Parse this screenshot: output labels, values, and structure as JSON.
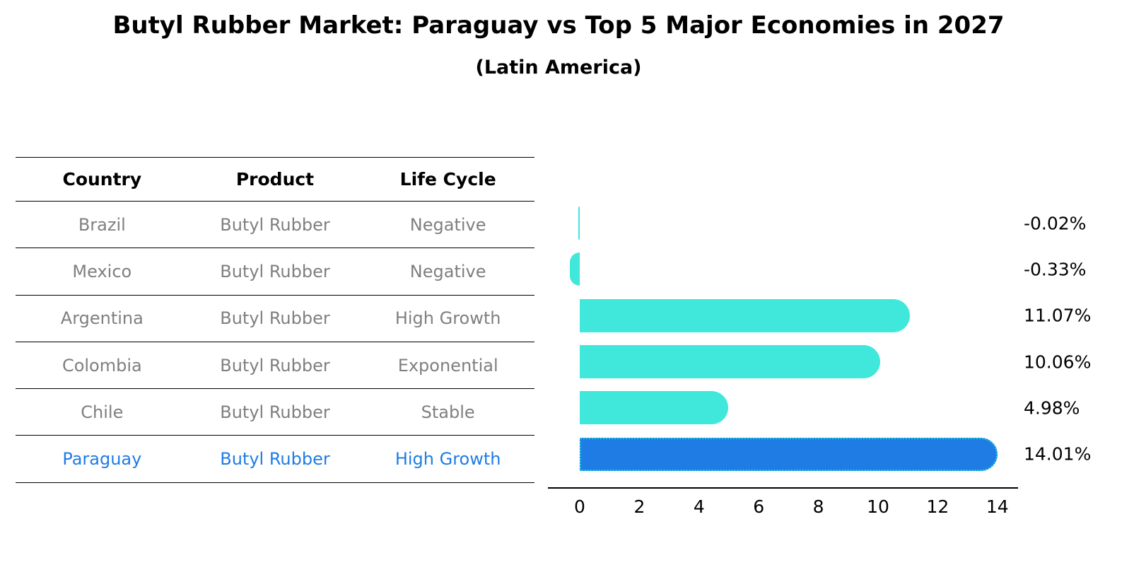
{
  "title": "Butyl Rubber Market: Paraguay vs Top 5 Major Economies in 2027",
  "subtitle": "(Latin America)",
  "table": {
    "headers": [
      "Country",
      "Product",
      "Life Cycle"
    ],
    "rows": [
      {
        "country": "Brazil",
        "product": "Butyl Rubber",
        "life_cycle": "Negative"
      },
      {
        "country": "Mexico",
        "product": "Butyl Rubber",
        "life_cycle": "Negative"
      },
      {
        "country": "Argentina",
        "product": "Butyl Rubber",
        "life_cycle": "High Growth"
      },
      {
        "country": "Colombia",
        "product": "Butyl Rubber",
        "life_cycle": "Exponential"
      },
      {
        "country": "Chile",
        "product": "Butyl Rubber",
        "life_cycle": "Stable"
      },
      {
        "country": "Paraguay",
        "product": "Butyl Rubber",
        "life_cycle": "High Growth"
      }
    ]
  },
  "chart_data": {
    "type": "bar",
    "orientation": "horizontal",
    "title": "Butyl Rubber Market: Paraguay vs Top 5 Major Economies in 2027",
    "subtitle": "(Latin America)",
    "categories": [
      "Brazil",
      "Mexico",
      "Argentina",
      "Colombia",
      "Chile",
      "Paraguay"
    ],
    "values": [
      -0.02,
      -0.33,
      11.07,
      10.06,
      4.98,
      14.01
    ],
    "value_labels": [
      "-0.02%",
      "-0.33%",
      "11.07%",
      "10.06%",
      "4.98%",
      "14.01%"
    ],
    "xlabel": "",
    "ylabel": "",
    "xticks": [
      0,
      2,
      4,
      6,
      8,
      10,
      12,
      14
    ],
    "xlim": [
      -1.1,
      14.7
    ],
    "grid": false,
    "legend": false,
    "bar_color": "#40E8DC",
    "highlight_index": 5,
    "highlight_color": "#1F7CE5",
    "highlight_border_color": "#25C9DC",
    "text_color": "#7f7f7f",
    "highlight_text_color": "#1F7CE5"
  }
}
